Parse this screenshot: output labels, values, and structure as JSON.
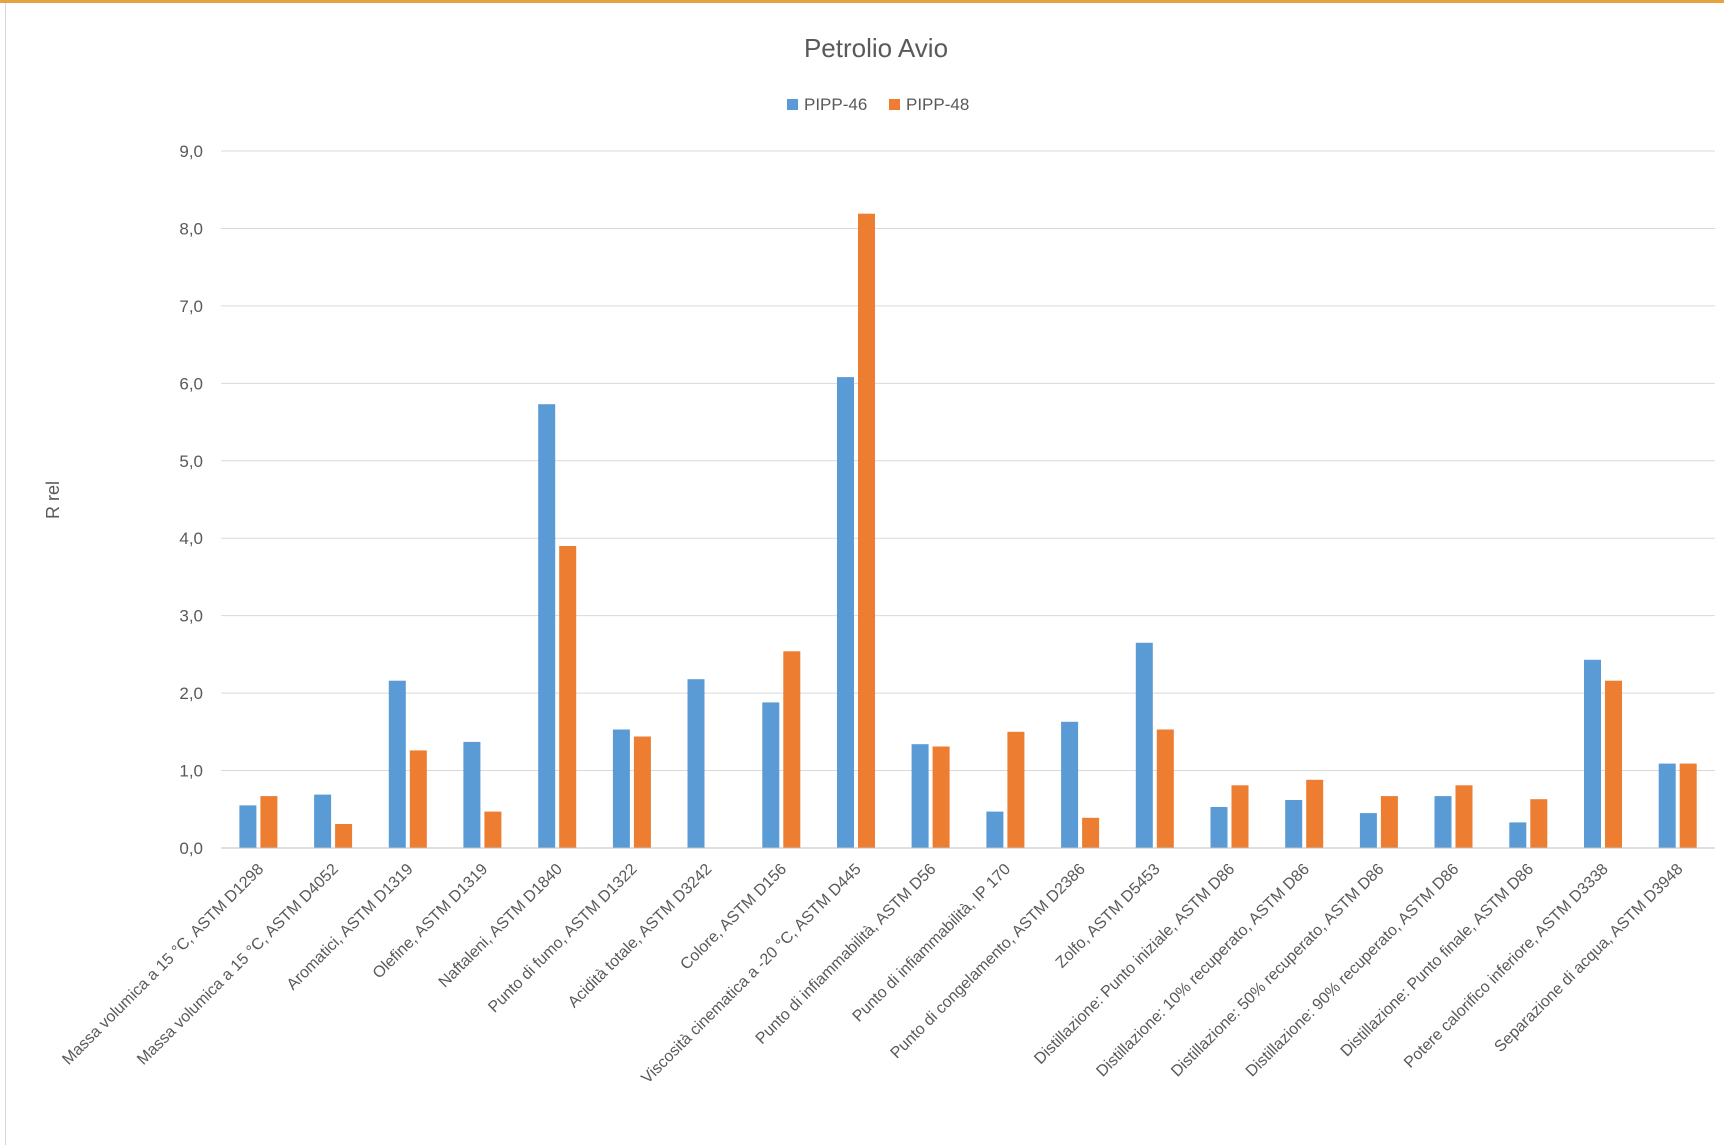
{
  "chart_data": {
    "type": "bar",
    "title": "Petrolio Avio",
    "ylabel": "R rel",
    "xlabel": "",
    "ylim": [
      0,
      9
    ],
    "yticks": [
      "0,0",
      "1,0",
      "2,0",
      "3,0",
      "4,0",
      "5,0",
      "6,0",
      "7,0",
      "8,0",
      "9,0"
    ],
    "grid": true,
    "legend_position": "top-center",
    "categories": [
      "Massa volumica a 15 °C, ASTM D1298",
      "Massa volumica a 15 °C, ASTM D4052",
      "Aromatici, ASTM D1319",
      "Olefine, ASTM D1319",
      "Naftaleni, ASTM D1840",
      "Punto di fumo, ASTM D1322",
      "Acidità totale, ASTM D3242",
      "Colore, ASTM D156",
      "Viscosità cinematica a -20 °C, ASTM D445",
      "Punto di infiammabilità, ASTM D56",
      "Punto di infiammabilità, IP 170",
      "Punto di congelamento, ASTM D2386",
      "Zolfo, ASTM D5453",
      "Distillazione: Punto iniziale, ASTM D86",
      "Distillazione: 10% recuperato, ASTM D86",
      "Distillazione: 50% recuperato, ASTM D86",
      "Distillazione: 90% recuperato, ASTM D86",
      "Distillazione: Punto finale, ASTM D86",
      "Potere calorifico inferiore, ASTM D3338",
      "Separazione di acqua, ASTM D3948"
    ],
    "series": [
      {
        "name": "PIPP-46",
        "color": "#5b9bd5",
        "values": [
          0.55,
          0.69,
          2.16,
          1.37,
          5.73,
          1.53,
          2.18,
          1.88,
          6.08,
          1.34,
          0.47,
          1.63,
          2.65,
          0.53,
          0.62,
          0.45,
          0.67,
          0.33,
          2.43,
          1.09
        ]
      },
      {
        "name": "PIPP-48",
        "color": "#ed7d31",
        "values": [
          0.67,
          0.31,
          1.26,
          0.47,
          3.9,
          1.44,
          0.0,
          2.54,
          8.19,
          1.31,
          1.5,
          0.39,
          1.53,
          0.81,
          0.88,
          0.67,
          0.81,
          0.63,
          2.16,
          1.09
        ]
      }
    ]
  }
}
